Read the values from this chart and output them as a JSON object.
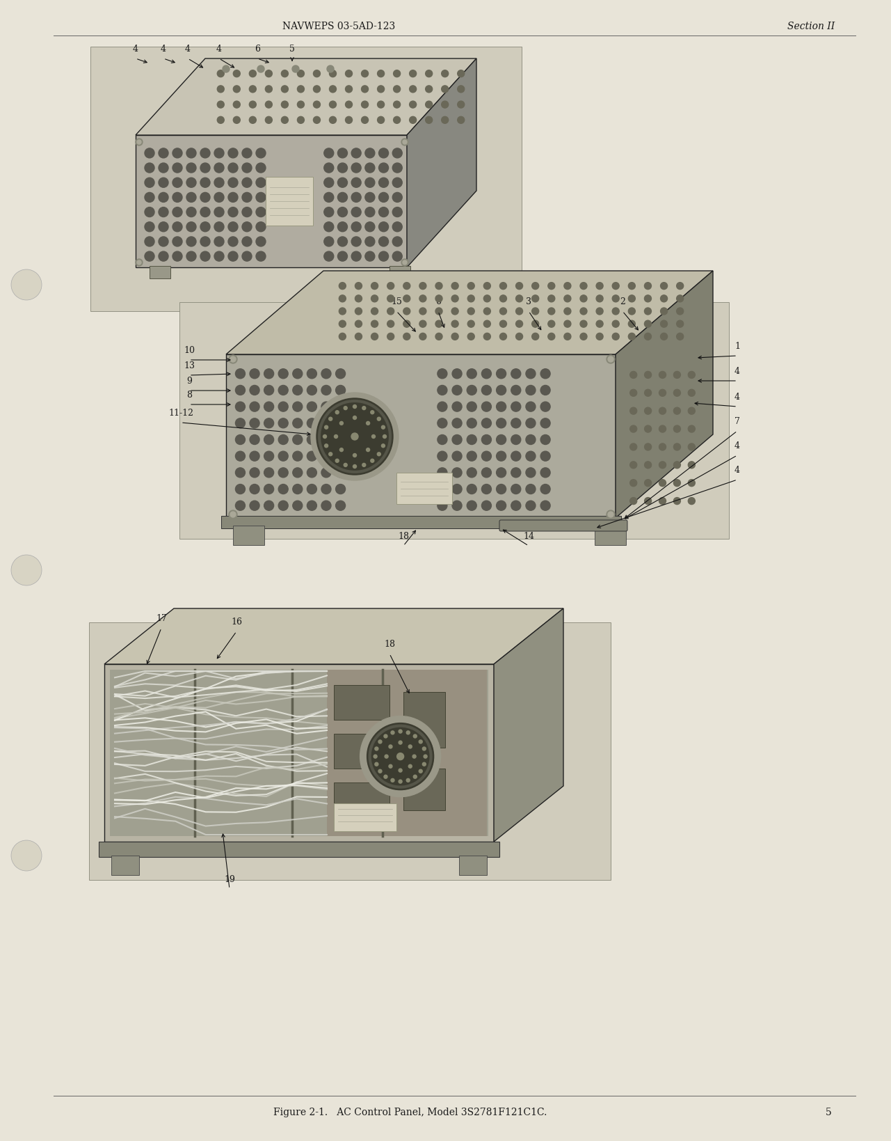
{
  "bg_color": "#E8E4D8",
  "page_bg": "#EAE6D8",
  "header_left": "NAVWEPS 03-5AD-123",
  "header_right": "Section II",
  "footer_center": "Figure 2-1.   AC Control Panel, Model 3S2781F121C1C.",
  "footer_page": "5",
  "header_fontsize": 10,
  "footer_fontsize": 10,
  "annot_fontsize": 9,
  "box_outline": "#222222",
  "box_face_light": "#C8C4B0",
  "box_face_mid": "#A8A498",
  "box_face_dark": "#888478",
  "box_top": "#D8D4C0",
  "box_side": "#909080",
  "vent_color": "#5a5850",
  "text_color": "#1a1a1a"
}
